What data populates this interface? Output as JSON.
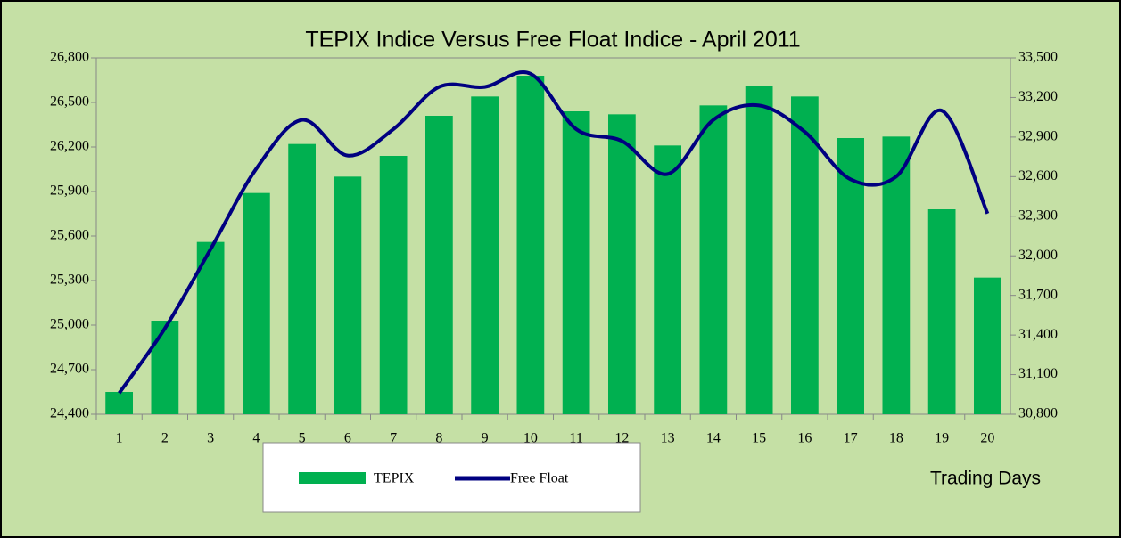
{
  "chart_data": {
    "type": "bar_line",
    "title": "TEPIX Indice Versus Free Float Indice - April 2011",
    "x_label": "Trading Days",
    "categories": [
      "1",
      "2",
      "3",
      "4",
      "5",
      "6",
      "7",
      "8",
      "9",
      "10",
      "11",
      "12",
      "13",
      "14",
      "15",
      "16",
      "17",
      "18",
      "19",
      "20"
    ],
    "series": [
      {
        "name": "TEPIX",
        "type": "bar",
        "color": "#00b050",
        "axis": "y",
        "values": [
          24550,
          25030,
          25560,
          25890,
          26220,
          26000,
          26140,
          26410,
          26540,
          26680,
          26440,
          26420,
          26210,
          26480,
          26610,
          26540,
          26260,
          26270,
          25780,
          25320
        ]
      },
      {
        "name": "Free Float",
        "type": "line",
        "color": "#000080",
        "axis": "y2",
        "values": [
          30960,
          31450,
          32050,
          32660,
          33030,
          32760,
          32960,
          33280,
          33280,
          33380,
          32960,
          32870,
          32620,
          33030,
          33140,
          32940,
          32580,
          32600,
          33100,
          32320
        ]
      }
    ],
    "ylim": [
      24400,
      26800
    ],
    "yticks": [
      {
        "value": 24400,
        "label": "24,400"
      },
      {
        "value": 24700,
        "label": "24,700"
      },
      {
        "value": 25000,
        "label": "25,000"
      },
      {
        "value": 25300,
        "label": "25,300"
      },
      {
        "value": 25600,
        "label": "25,600"
      },
      {
        "value": 25900,
        "label": "25,900"
      },
      {
        "value": 26200,
        "label": "26,200"
      },
      {
        "value": 26500,
        "label": "26,500"
      },
      {
        "value": 26800,
        "label": "26,800"
      }
    ],
    "y2lim": [
      30800,
      33500
    ],
    "y2ticks": [
      {
        "value": 30800,
        "label": "30,800"
      },
      {
        "value": 31100,
        "label": "31,100"
      },
      {
        "value": 31400,
        "label": "31,400"
      },
      {
        "value": 31700,
        "label": "31,700"
      },
      {
        "value": 32000,
        "label": "32,000"
      },
      {
        "value": 32300,
        "label": "32,300"
      },
      {
        "value": 32600,
        "label": "32,600"
      },
      {
        "value": 32900,
        "label": "32,900"
      },
      {
        "value": 33200,
        "label": "33,200"
      },
      {
        "value": 33500,
        "label": "33,500"
      }
    ],
    "grid": false
  }
}
